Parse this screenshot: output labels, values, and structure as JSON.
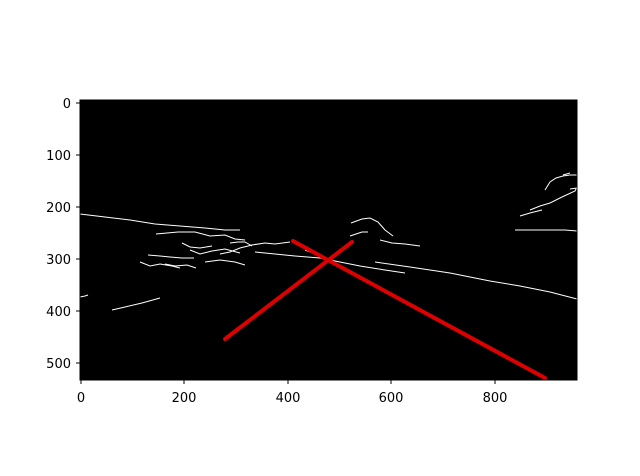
{
  "image": {
    "type": "edge-detected road image with detected lane lines",
    "background_color": "#000000",
    "edge_color": "#ffffff",
    "lane_color": "#dd0000"
  },
  "axes": {
    "x_ticks": [
      "0",
      "200",
      "400",
      "600",
      "800"
    ],
    "y_ticks": [
      "0",
      "100",
      "200",
      "300",
      "400",
      "500"
    ],
    "xlim": [
      0,
      960
    ],
    "ylim_inverted": [
      540,
      0
    ]
  },
  "lane_lines": [
    {
      "name": "left-lane",
      "x1": 280,
      "y1": 460,
      "x2": 525,
      "y2": 273
    },
    {
      "name": "right-lane",
      "x1": 410,
      "y1": 270,
      "x2": 900,
      "y2": 535
    }
  ]
}
